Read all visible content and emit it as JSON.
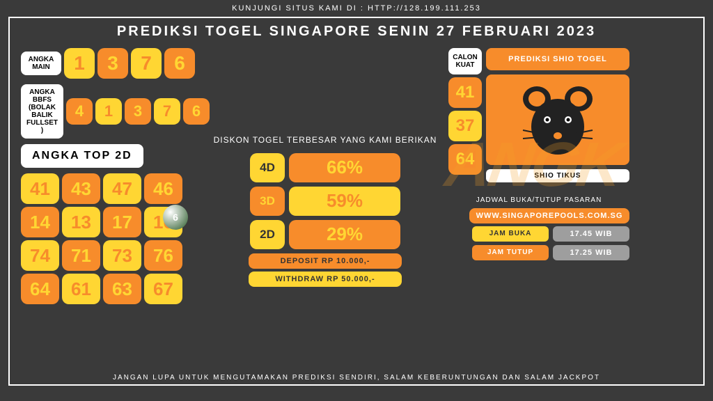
{
  "top_text": "KUNJUNGI SITUS KAMI DI : HTTP://128.199.111.253",
  "title": "PREDIKSI TOGEL SINGAPORE SENIN 27 FEBRUARI 2023",
  "footer": "JANGAN LUPA UNTUK MENGUTAMAKAN PREDIKSI SENDIRI, SALAM KEBERUNTUNGAN DAN SALAM JACKPOT",
  "colors": {
    "yellow": "#ffd633",
    "orange": "#f78c2b",
    "white": "#ffffff",
    "grey": "#9e9e9e"
  },
  "angka_main": {
    "label": "ANGKA\nMAIN",
    "nums": [
      {
        "v": "1",
        "bg": "y"
      },
      {
        "v": "3",
        "bg": "o"
      },
      {
        "v": "7",
        "bg": "y"
      },
      {
        "v": "6",
        "bg": "o"
      }
    ]
  },
  "angka_bbfs": {
    "label": "ANGKA BBFS\n(BOLAK BALIK\nFULLSET )",
    "nums": [
      {
        "v": "4",
        "bg": "o"
      },
      {
        "v": "1",
        "bg": "y"
      },
      {
        "v": "3",
        "bg": "o"
      },
      {
        "v": "7",
        "bg": "y"
      },
      {
        "v": "6",
        "bg": "o"
      }
    ]
  },
  "top2d": {
    "title": "ANGKA TOP 2D",
    "cells": [
      {
        "v": "41",
        "bg": "y"
      },
      {
        "v": "43",
        "bg": "o"
      },
      {
        "v": "47",
        "bg": "y"
      },
      {
        "v": "46",
        "bg": "o"
      },
      {
        "v": "14",
        "bg": "o"
      },
      {
        "v": "13",
        "bg": "y"
      },
      {
        "v": "17",
        "bg": "o"
      },
      {
        "v": "16",
        "bg": "y"
      },
      {
        "v": "74",
        "bg": "y"
      },
      {
        "v": "71",
        "bg": "o"
      },
      {
        "v": "73",
        "bg": "y"
      },
      {
        "v": "76",
        "bg": "o"
      },
      {
        "v": "64",
        "bg": "o"
      },
      {
        "v": "61",
        "bg": "y"
      },
      {
        "v": "63",
        "bg": "o"
      },
      {
        "v": "67",
        "bg": "y"
      }
    ]
  },
  "diskon": {
    "title": "DISKON TOGEL TERBESAR\nYANG KAMI BERIKAN",
    "rows": [
      {
        "label": "4D",
        "lbg": "y",
        "val": "66%",
        "vbg": "o"
      },
      {
        "label": "3D",
        "lbg": "o",
        "val": "59%",
        "vbg": "y"
      },
      {
        "label": "2D",
        "lbg": "y",
        "val": "29%",
        "vbg": "o"
      }
    ],
    "deposit": "DEPOSIT RP 10.000,-",
    "withdraw": "WITHDRAW RP 50.000,-"
  },
  "calon": {
    "label": "CALON\nKUAT",
    "nums": [
      {
        "v": "41",
        "bg": "o"
      },
      {
        "v": "37",
        "bg": "y"
      },
      {
        "v": "64",
        "bg": "o"
      }
    ]
  },
  "shio": {
    "head": "PREDIKSI SHIO TOGEL",
    "name": "SHIO TIKUS"
  },
  "schedule": {
    "title": "JADWAL BUKA/TUTUP PASARAN",
    "site": "WWW.SINGAPOREPOOLS.COM.SG",
    "rows": [
      {
        "label": "JAM BUKA",
        "lbg": "y",
        "val": "17.45 WIB"
      },
      {
        "label": "JAM TUTUP",
        "lbg": "o",
        "val": "17.25 WIB"
      }
    ]
  },
  "watermark": "ANGK",
  "ball": "6"
}
